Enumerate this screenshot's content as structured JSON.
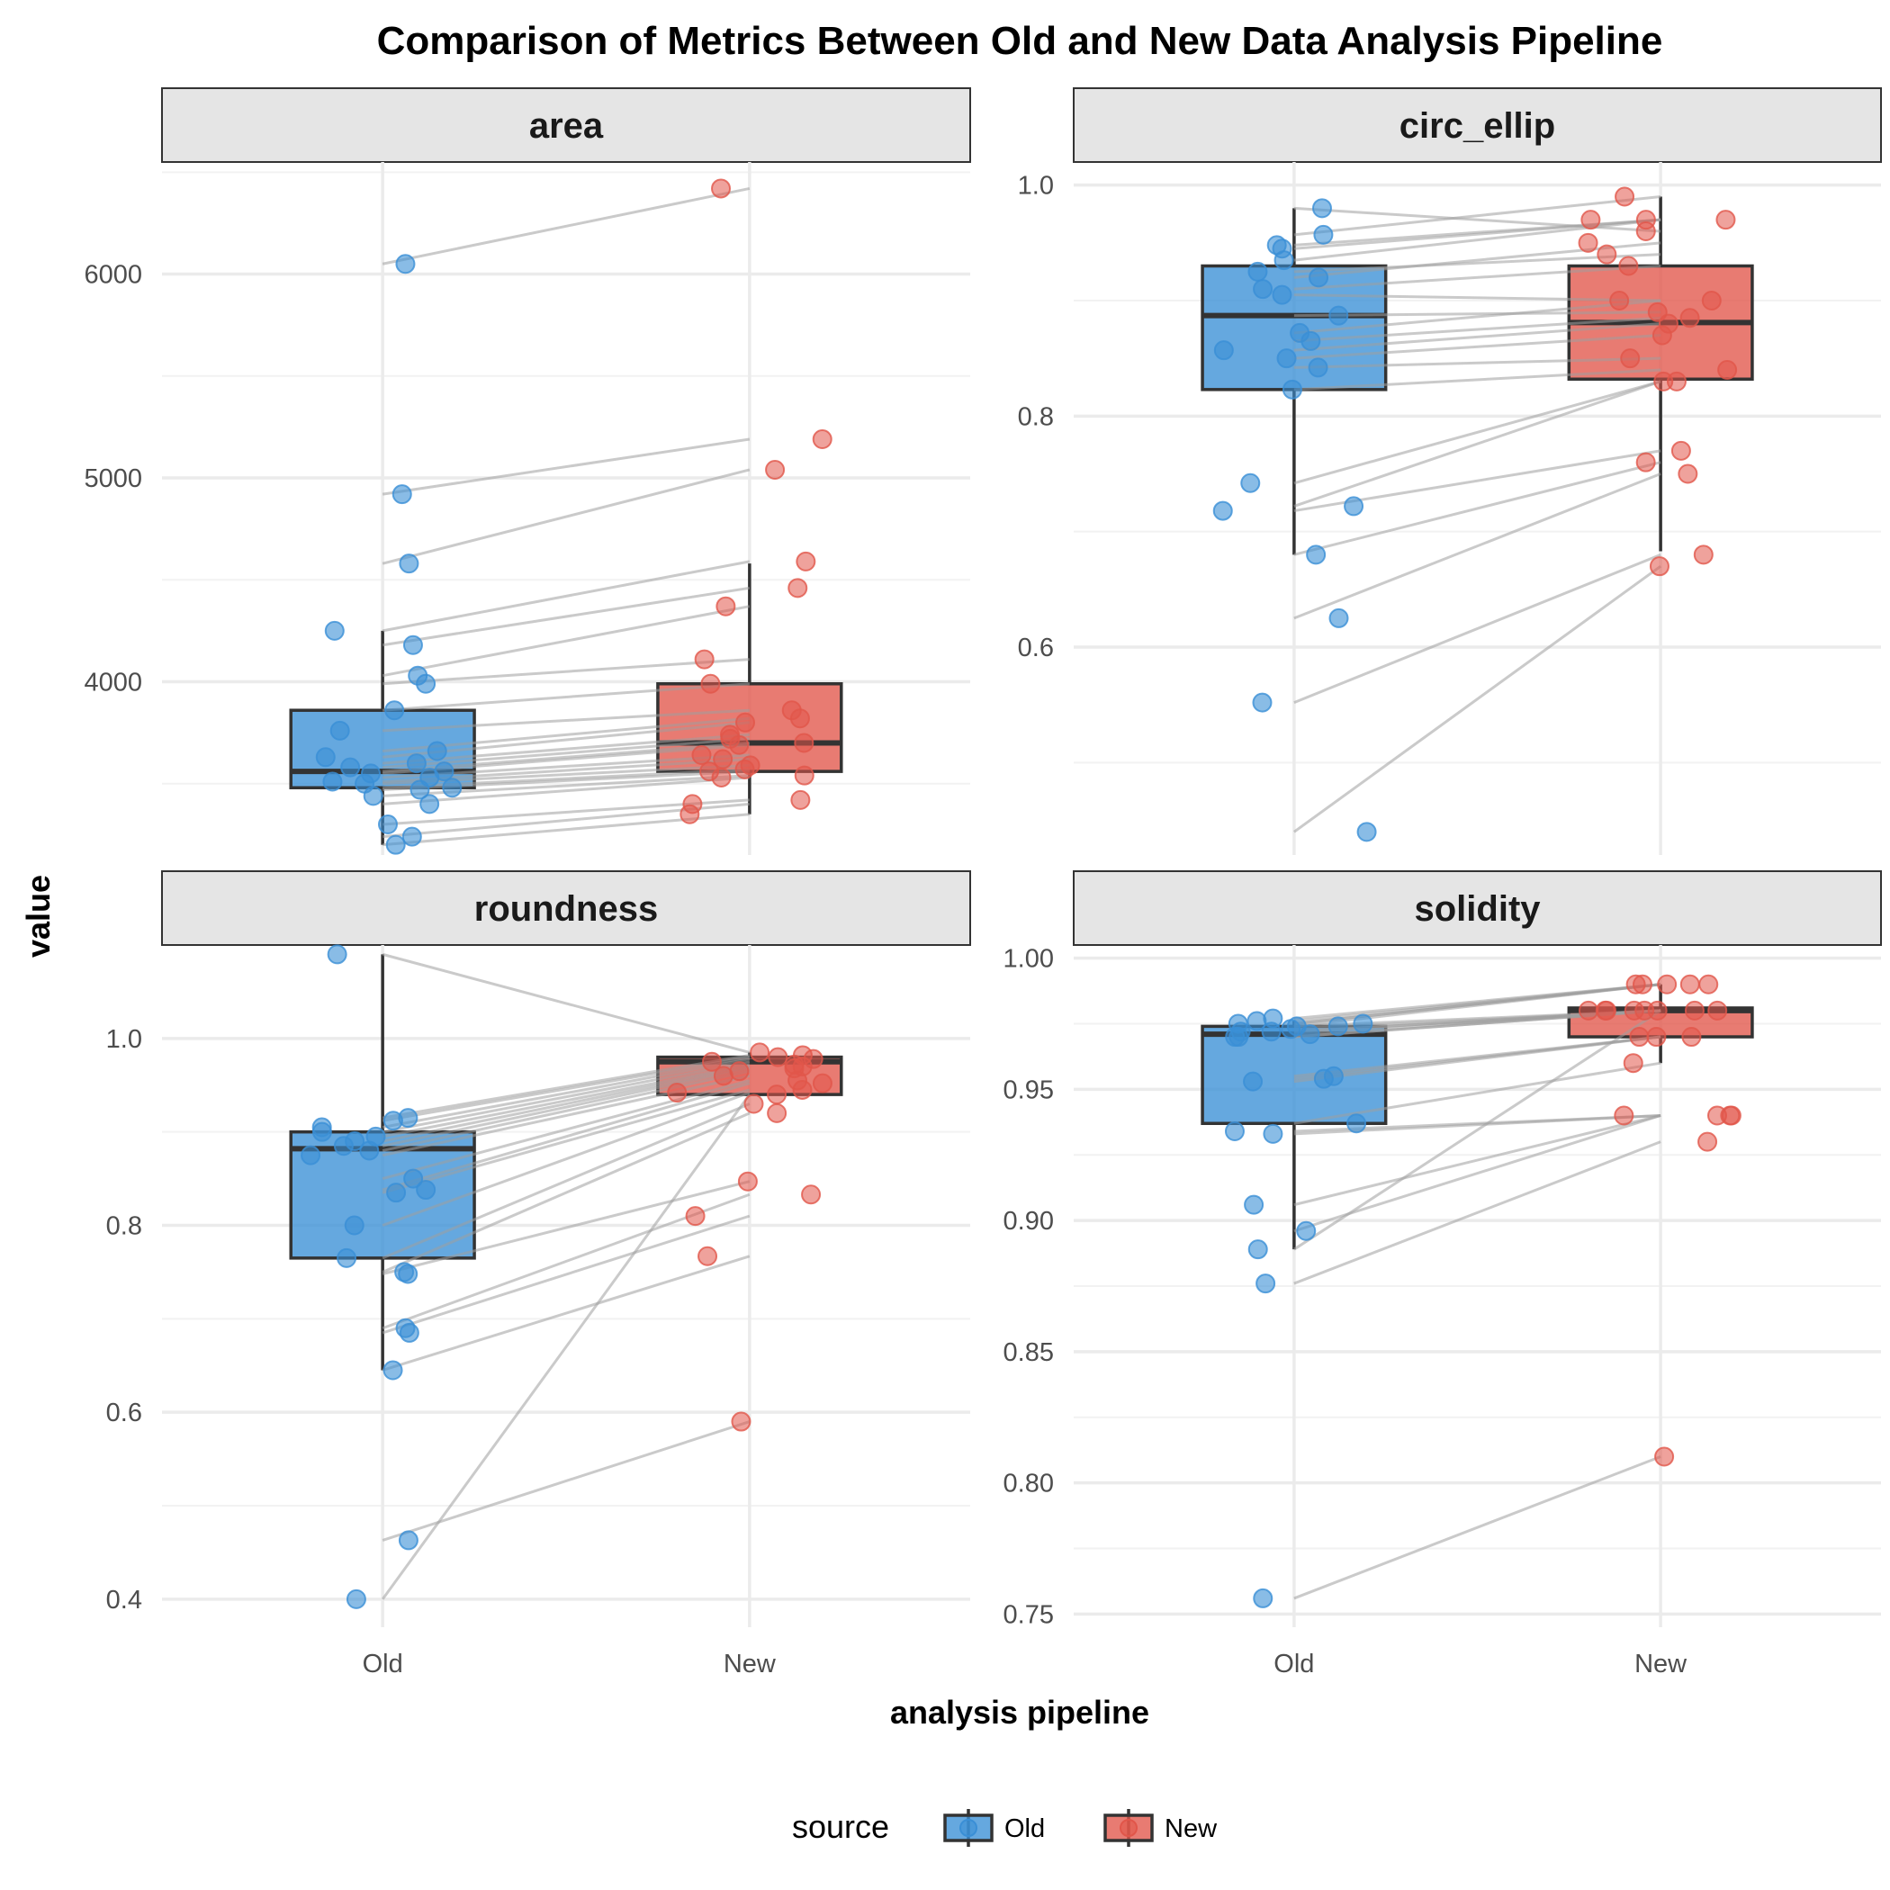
{
  "chart_data": {
    "type": "box",
    "title": "Comparison of Metrics Between Old and New Data Analysis Pipeline",
    "xlabel": "analysis pipeline",
    "ylabel": "value",
    "categories": [
      "Old",
      "New"
    ],
    "legend": {
      "title": "source",
      "placement": "bottom",
      "entries": [
        {
          "name": "Old",
          "color": "#3a8fd6"
        },
        {
          "name": "New",
          "color": "#e1564a"
        }
      ]
    },
    "colors": {
      "Old": "#3a8fd6",
      "New": "#e1564a",
      "box_outline": "#333333",
      "pair_line": "#9e9e9e",
      "strip_fill": "#e5e5e5",
      "grid": "#ebebeb"
    },
    "grid": true,
    "panels": [
      {
        "name": "area",
        "ylim": [
          3150,
          6550
        ],
        "yticks": [
          4000,
          5000,
          6000
        ],
        "ytick_labels": [
          "4000",
          "5000",
          "6000"
        ],
        "box": {
          "Old": {
            "whisker_low": 3200,
            "q1": 3480,
            "median": 3560,
            "q3": 3860,
            "whisker_high": 4250
          },
          "New": {
            "whisker_low": 3350,
            "q1": 3560,
            "median": 3700,
            "q3": 3990,
            "whisker_high": 4580
          }
        },
        "pairs": [
          {
            "old": 6050,
            "new": 6420
          },
          {
            "old": 4920,
            "new": 5190
          },
          {
            "old": 4580,
            "new": 5040
          },
          {
            "old": 4250,
            "new": 4590
          },
          {
            "old": 4180,
            "new": 4460
          },
          {
            "old": 4030,
            "new": 4370
          },
          {
            "old": 3990,
            "new": 4110
          },
          {
            "old": 3860,
            "new": 3990
          },
          {
            "old": 3760,
            "new": 3860
          },
          {
            "old": 3660,
            "new": 3820
          },
          {
            "old": 3630,
            "new": 3800
          },
          {
            "old": 3600,
            "new": 3740
          },
          {
            "old": 3580,
            "new": 3720
          },
          {
            "old": 3560,
            "new": 3700
          },
          {
            "old": 3550,
            "new": 3690
          },
          {
            "old": 3530,
            "new": 3640
          },
          {
            "old": 3510,
            "new": 3620
          },
          {
            "old": 3500,
            "new": 3590
          },
          {
            "old": 3480,
            "new": 3570
          },
          {
            "old": 3470,
            "new": 3560
          },
          {
            "old": 3440,
            "new": 3540
          },
          {
            "old": 3400,
            "new": 3530
          },
          {
            "old": 3300,
            "new": 3420
          },
          {
            "old": 3240,
            "new": 3400
          },
          {
            "old": 3200,
            "new": 3350
          }
        ]
      },
      {
        "name": "circ_ellip",
        "ylim": [
          0.42,
          1.02
        ],
        "yticks": [
          0.6,
          0.8,
          1.0
        ],
        "ytick_labels": [
          "0.6",
          "0.8",
          "1.0"
        ],
        "box": {
          "Old": {
            "whisker_low": 0.68,
            "q1": 0.823,
            "median": 0.887,
            "q3": 0.93,
            "whisker_high": 0.98
          },
          "New": {
            "whisker_low": 0.683,
            "q1": 0.832,
            "median": 0.881,
            "q3": 0.93,
            "whisker_high": 0.99
          }
        },
        "pairs": [
          {
            "old": 0.98,
            "new": 0.96
          },
          {
            "old": 0.957,
            "new": 0.99
          },
          {
            "old": 0.948,
            "new": 0.97
          },
          {
            "old": 0.945,
            "new": 0.97
          },
          {
            "old": 0.935,
            "new": 0.97
          },
          {
            "old": 0.925,
            "new": 0.94
          },
          {
            "old": 0.92,
            "new": 0.95
          },
          {
            "old": 0.91,
            "new": 0.93
          },
          {
            "old": 0.905,
            "new": 0.9
          },
          {
            "old": 0.887,
            "new": 0.89
          },
          {
            "old": 0.872,
            "new": 0.9
          },
          {
            "old": 0.865,
            "new": 0.885
          },
          {
            "old": 0.857,
            "new": 0.88
          },
          {
            "old": 0.85,
            "new": 0.87
          },
          {
            "old": 0.842,
            "new": 0.85
          },
          {
            "old": 0.823,
            "new": 0.84
          },
          {
            "old": 0.742,
            "new": 0.83
          },
          {
            "old": 0.722,
            "new": 0.83
          },
          {
            "old": 0.718,
            "new": 0.77
          },
          {
            "old": 0.68,
            "new": 0.76
          },
          {
            "old": 0.625,
            "new": 0.75
          },
          {
            "old": 0.552,
            "new": 0.68
          },
          {
            "old": 0.44,
            "new": 0.67
          }
        ]
      },
      {
        "name": "roundness",
        "ylim": [
          0.37,
          1.1
        ],
        "yticks": [
          0.4,
          0.6,
          0.8,
          1.0
        ],
        "ytick_labels": [
          "0.4",
          "0.6",
          "0.8",
          "1.0"
        ],
        "box": {
          "Old": {
            "whisker_low": 0.645,
            "q1": 0.765,
            "median": 0.882,
            "q3": 0.9,
            "whisker_high": 1.09
          },
          "New": {
            "whisker_low": 0.94,
            "q1": 0.94,
            "median": 0.975,
            "q3": 0.98,
            "whisker_high": 0.985
          }
        },
        "pairs": [
          {
            "old": 1.09,
            "new": 0.985
          },
          {
            "old": 0.915,
            "new": 0.982
          },
          {
            "old": 0.912,
            "new": 0.98
          },
          {
            "old": 0.905,
            "new": 0.978
          },
          {
            "old": 0.9,
            "new": 0.975
          },
          {
            "old": 0.895,
            "new": 0.972
          },
          {
            "old": 0.89,
            "new": 0.97
          },
          {
            "old": 0.885,
            "new": 0.968
          },
          {
            "old": 0.88,
            "new": 0.965
          },
          {
            "old": 0.875,
            "new": 0.96
          },
          {
            "old": 0.85,
            "new": 0.955
          },
          {
            "old": 0.838,
            "new": 0.952
          },
          {
            "old": 0.835,
            "new": 0.945
          },
          {
            "old": 0.8,
            "new": 0.942
          },
          {
            "old": 0.765,
            "new": 0.93
          },
          {
            "old": 0.75,
            "new": 0.92
          },
          {
            "old": 0.748,
            "new": 0.847
          },
          {
            "old": 0.69,
            "new": 0.833
          },
          {
            "old": 0.685,
            "new": 0.81
          },
          {
            "old": 0.645,
            "new": 0.767
          },
          {
            "old": 0.463,
            "new": 0.59
          },
          {
            "old": 0.4,
            "new": 0.94
          }
        ]
      },
      {
        "name": "solidity",
        "ylim": [
          0.745,
          1.005
        ],
        "yticks": [
          0.75,
          0.8,
          0.85,
          0.9,
          0.95,
          1.0
        ],
        "ytick_labels": [
          "0.75",
          "0.80",
          "0.85",
          "0.90",
          "0.95",
          "1.00"
        ],
        "box": {
          "Old": {
            "whisker_low": 0.889,
            "q1": 0.937,
            "median": 0.971,
            "q3": 0.974,
            "whisker_high": 0.976
          },
          "New": {
            "whisker_low": 0.96,
            "q1": 0.97,
            "median": 0.98,
            "q3": 0.981,
            "whisker_high": 0.99
          }
        },
        "pairs": [
          {
            "old": 0.977,
            "new": 0.99
          },
          {
            "old": 0.976,
            "new": 0.99
          },
          {
            "old": 0.975,
            "new": 0.99
          },
          {
            "old": 0.975,
            "new": 0.99
          },
          {
            "old": 0.974,
            "new": 0.99
          },
          {
            "old": 0.974,
            "new": 0.98
          },
          {
            "old": 0.973,
            "new": 0.98
          },
          {
            "old": 0.972,
            "new": 0.98
          },
          {
            "old": 0.972,
            "new": 0.98
          },
          {
            "old": 0.971,
            "new": 0.98
          },
          {
            "old": 0.97,
            "new": 0.98
          },
          {
            "old": 0.97,
            "new": 0.98
          },
          {
            "old": 0.955,
            "new": 0.97
          },
          {
            "old": 0.954,
            "new": 0.97
          },
          {
            "old": 0.953,
            "new": 0.97
          },
          {
            "old": 0.937,
            "new": 0.96
          },
          {
            "old": 0.934,
            "new": 0.94
          },
          {
            "old": 0.933,
            "new": 0.94
          },
          {
            "old": 0.906,
            "new": 0.94
          },
          {
            "old": 0.896,
            "new": 0.94
          },
          {
            "old": 0.889,
            "new": 0.98
          },
          {
            "old": 0.876,
            "new": 0.93
          },
          {
            "old": 0.756,
            "new": 0.81
          }
        ]
      }
    ]
  }
}
